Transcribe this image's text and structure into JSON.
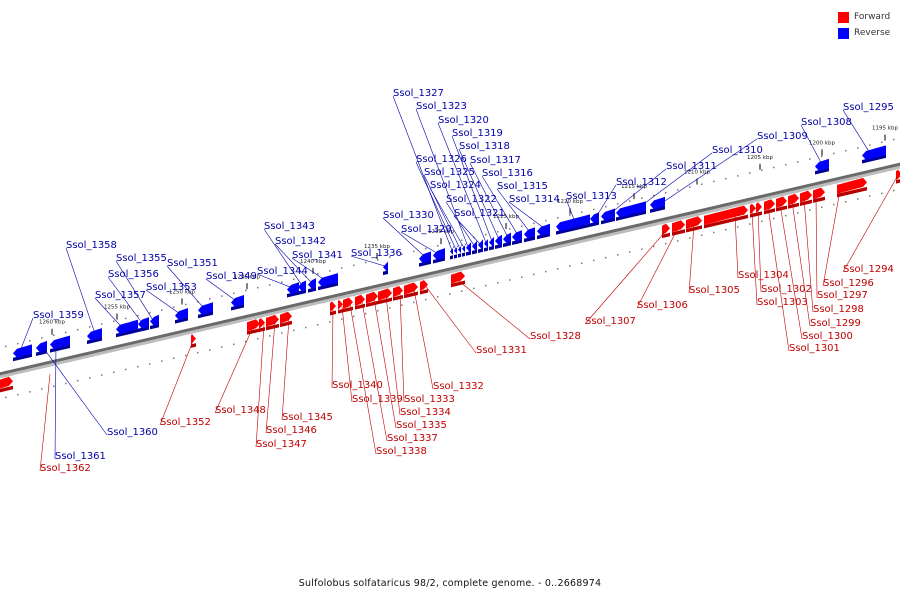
{
  "legend": {
    "forward_label": "Forward",
    "reverse_label": "Reverse",
    "forward_color": "#ff0000",
    "reverse_color": "#0000ff"
  },
  "caption": "Sulfolobus solfataricus 98/2, complete genome. - 0..2668974",
  "ticks": [
    "1195 kbp",
    "1200 kbp",
    "1205 kbp",
    "1210 kbp",
    "1215 kbp",
    "1220 kbp",
    "1225 kbp",
    "1230 kbp",
    "1235 kbp",
    "1240 kbp",
    "1245 kbp",
    "1250 kbp",
    "1255 kbp",
    "1260 kbp"
  ],
  "genes_reverse": [
    "Ssol_1295",
    "Ssol_1308",
    "Ssol_1309",
    "Ssol_1310",
    "Ssol_1311",
    "Ssol_1312",
    "Ssol_1313",
    "Ssol_1314",
    "Ssol_1315",
    "Ssol_1316",
    "Ssol_1317",
    "Ssol_1318",
    "Ssol_1319",
    "Ssol_1320",
    "Ssol_1321",
    "Ssol_1322",
    "Ssol_1323",
    "Ssol_1324",
    "Ssol_1325",
    "Ssol_1326",
    "Ssol_1327",
    "Ssol_1329",
    "Ssol_1330",
    "Ssol_1336",
    "Ssol_1341",
    "Ssol_1342",
    "Ssol_1343",
    "Ssol_1344",
    "Ssol_1349",
    "Ssol_1351",
    "Ssol_1353",
    "Ssol_1355",
    "Ssol_1356",
    "Ssol_1357",
    "Ssol_1358",
    "Ssol_1359",
    "Ssol_1360",
    "Ssol_1361"
  ],
  "genes_forward": [
    "Ssol_1294",
    "Ssol_1296",
    "Ssol_1297",
    "Ssol_1298",
    "Ssol_1299",
    "Ssol_1300",
    "Ssol_1301",
    "Ssol_1302",
    "Ssol_1303",
    "Ssol_1304",
    "Ssol_1305",
    "Ssol_1306",
    "Ssol_1307",
    "Ssol_1328",
    "Ssol_1331",
    "Ssol_1332",
    "Ssol_1333",
    "Ssol_1334",
    "Ssol_1335",
    "Ssol_1337",
    "Ssol_1338",
    "Ssol_1339",
    "Ssol_1340",
    "Ssol_1345",
    "Ssol_1346",
    "Ssol_1347",
    "Ssol_1348",
    "Ssol_1352",
    "Ssol_1362"
  ]
}
